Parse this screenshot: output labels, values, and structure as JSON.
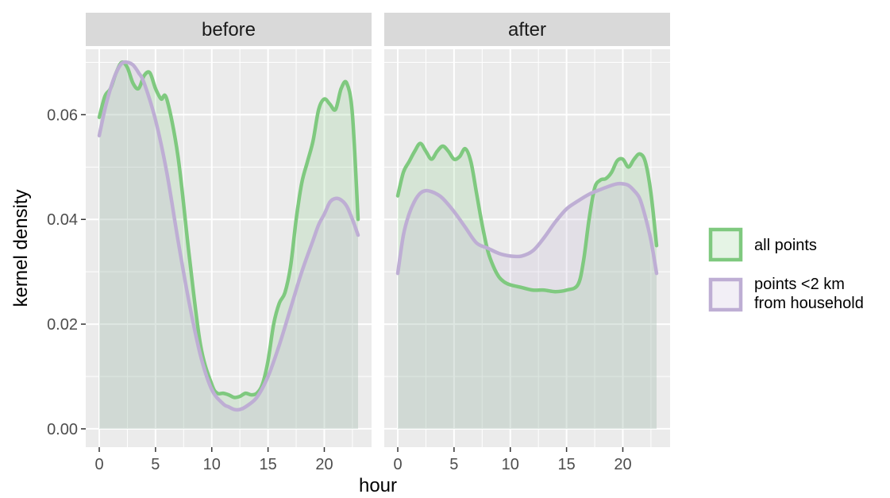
{
  "chart_data": {
    "type": "area",
    "xlabel": "hour",
    "ylabel": "kernel density",
    "xlim": [
      -1.2,
      24.2
    ],
    "ylim": [
      -0.0035,
      0.0725
    ],
    "x_ticks": [
      0,
      5,
      10,
      15,
      20
    ],
    "y_ticks": [
      0.0,
      0.02,
      0.04,
      0.06
    ],
    "y_tick_labels": [
      "0.00",
      "0.02",
      "0.04",
      "0.06"
    ],
    "grid": true,
    "legend_position": "right",
    "colors": {
      "all_points": "#7fc97f",
      "near_household": "#beaed4"
    },
    "panels": [
      {
        "label": "before",
        "series": [
          {
            "name": "all points",
            "color": "#7fc97f",
            "x": [
              0,
              0.5,
              1,
              1.5,
              2,
              2.5,
              3,
              3.5,
              4,
              4.5,
              5,
              5.5,
              6,
              7,
              8,
              9,
              10,
              10.5,
              11,
              11.5,
              12,
              12.5,
              13,
              13.5,
              14,
              14.5,
              15,
              15.5,
              16,
              16.5,
              17,
              17.5,
              18,
              18.5,
              19,
              19.5,
              20,
              20.5,
              21,
              21.5,
              22,
              22.5,
              23
            ],
            "y": [
              0.0595,
              0.0635,
              0.065,
              0.068,
              0.07,
              0.069,
              0.066,
              0.065,
              0.0675,
              0.068,
              0.065,
              0.063,
              0.063,
              0.052,
              0.033,
              0.016,
              0.0085,
              0.0068,
              0.0068,
              0.0065,
              0.006,
              0.0062,
              0.0068,
              0.0065,
              0.0068,
              0.0085,
              0.013,
              0.02,
              0.024,
              0.026,
              0.031,
              0.04,
              0.047,
              0.051,
              0.055,
              0.061,
              0.063,
              0.062,
              0.061,
              0.065,
              0.066,
              0.06,
              0.04
            ]
          },
          {
            "name": "points <2 km\nfrom household",
            "color": "#beaed4",
            "x": [
              0,
              0.5,
              1,
              1.5,
              2,
              2.5,
              3,
              3.5,
              4,
              5,
              6,
              7,
              8,
              9,
              10,
              11,
              11.5,
              12,
              12.5,
              13,
              14,
              15,
              16,
              17,
              18,
              19,
              19.5,
              20,
              20.5,
              21,
              21.5,
              22,
              22.5,
              23
            ],
            "y": [
              0.056,
              0.061,
              0.065,
              0.068,
              0.0698,
              0.07,
              0.0695,
              0.068,
              0.066,
              0.059,
              0.049,
              0.036,
              0.024,
              0.014,
              0.0075,
              0.0048,
              0.0042,
              0.0037,
              0.0037,
              0.0042,
              0.006,
              0.01,
              0.016,
              0.023,
              0.03,
              0.036,
              0.039,
              0.041,
              0.0433,
              0.044,
              0.0437,
              0.0425,
              0.04,
              0.037
            ]
          }
        ]
      },
      {
        "label": "after",
        "series": [
          {
            "name": "all points",
            "color": "#7fc97f",
            "x": [
              0,
              0.5,
              1,
              1.5,
              2,
              2.5,
              3,
              3.5,
              4,
              4.5,
              5,
              5.5,
              6,
              6.5,
              7,
              7.5,
              8,
              8.5,
              9,
              9.5,
              10,
              11,
              12,
              13,
              14,
              15,
              16,
              16.5,
              17,
              17.5,
              18,
              18.5,
              19,
              19.5,
              20,
              20.5,
              21,
              21.5,
              22,
              22.5,
              23
            ],
            "y": [
              0.0445,
              0.049,
              0.051,
              0.053,
              0.0545,
              0.053,
              0.0515,
              0.053,
              0.054,
              0.053,
              0.0515,
              0.052,
              0.0535,
              0.051,
              0.045,
              0.039,
              0.034,
              0.031,
              0.029,
              0.028,
              0.0275,
              0.027,
              0.0265,
              0.0265,
              0.0262,
              0.0265,
              0.0275,
              0.032,
              0.04,
              0.046,
              0.0475,
              0.0478,
              0.049,
              0.0512,
              0.0515,
              0.05,
              0.0515,
              0.0525,
              0.051,
              0.045,
              0.035
            ]
          },
          {
            "name": "points <2 km\nfrom household",
            "color": "#beaed4",
            "x": [
              0,
              0.5,
              1,
              1.5,
              2,
              2.5,
              3,
              3.5,
              4,
              5,
              6,
              7,
              8,
              9,
              10,
              11,
              12,
              13,
              14,
              15,
              16,
              17,
              18,
              19,
              19.5,
              20,
              20.5,
              21,
              21.5,
              22,
              22.5,
              23
            ],
            "y": [
              0.0297,
              0.037,
              0.041,
              0.0435,
              0.045,
              0.0455,
              0.0453,
              0.0448,
              0.044,
              0.0415,
              0.0385,
              0.0355,
              0.0345,
              0.0335,
              0.033,
              0.033,
              0.034,
              0.0365,
              0.0395,
              0.042,
              0.0435,
              0.0448,
              0.0457,
              0.0465,
              0.0468,
              0.0468,
              0.0465,
              0.0455,
              0.044,
              0.0405,
              0.036,
              0.0297
            ]
          }
        ]
      }
    ],
    "legend": [
      {
        "label": "all points",
        "color": "#7fc97f"
      },
      {
        "label": "points <2 km\nfrom household",
        "color": "#beaed4"
      }
    ]
  }
}
